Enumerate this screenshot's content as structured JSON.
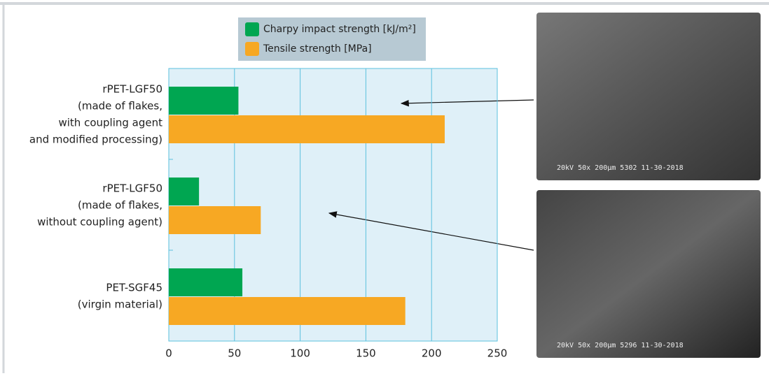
{
  "chart_data": {
    "type": "barh",
    "categories": [
      [
        "rPET-LGF50",
        "(made of flakes,",
        "with coupling agent",
        "and modified processing)"
      ],
      [
        "rPET-LGF50",
        "(made of flakes,",
        "without coupling agent)"
      ],
      [
        "PET-SGF45",
        "(virgin material)"
      ]
    ],
    "series": [
      {
        "name": "Charpy impact strength [kJ/m²]",
        "color": "#00a651",
        "values": [
          53,
          23,
          56
        ]
      },
      {
        "name": "Tensile strength [MPa]",
        "color": "#f7a823",
        "values": [
          210,
          70,
          180
        ]
      }
    ],
    "xlim": [
      0,
      250
    ],
    "xticks": [
      0,
      50,
      100,
      150,
      200,
      250
    ],
    "grid": true,
    "images": [
      {
        "caption": "20kV   50x  200µm 5302    11-30-2018"
      },
      {
        "caption": "20kV   50x  200µm 5296    11-30-2018"
      }
    ]
  }
}
